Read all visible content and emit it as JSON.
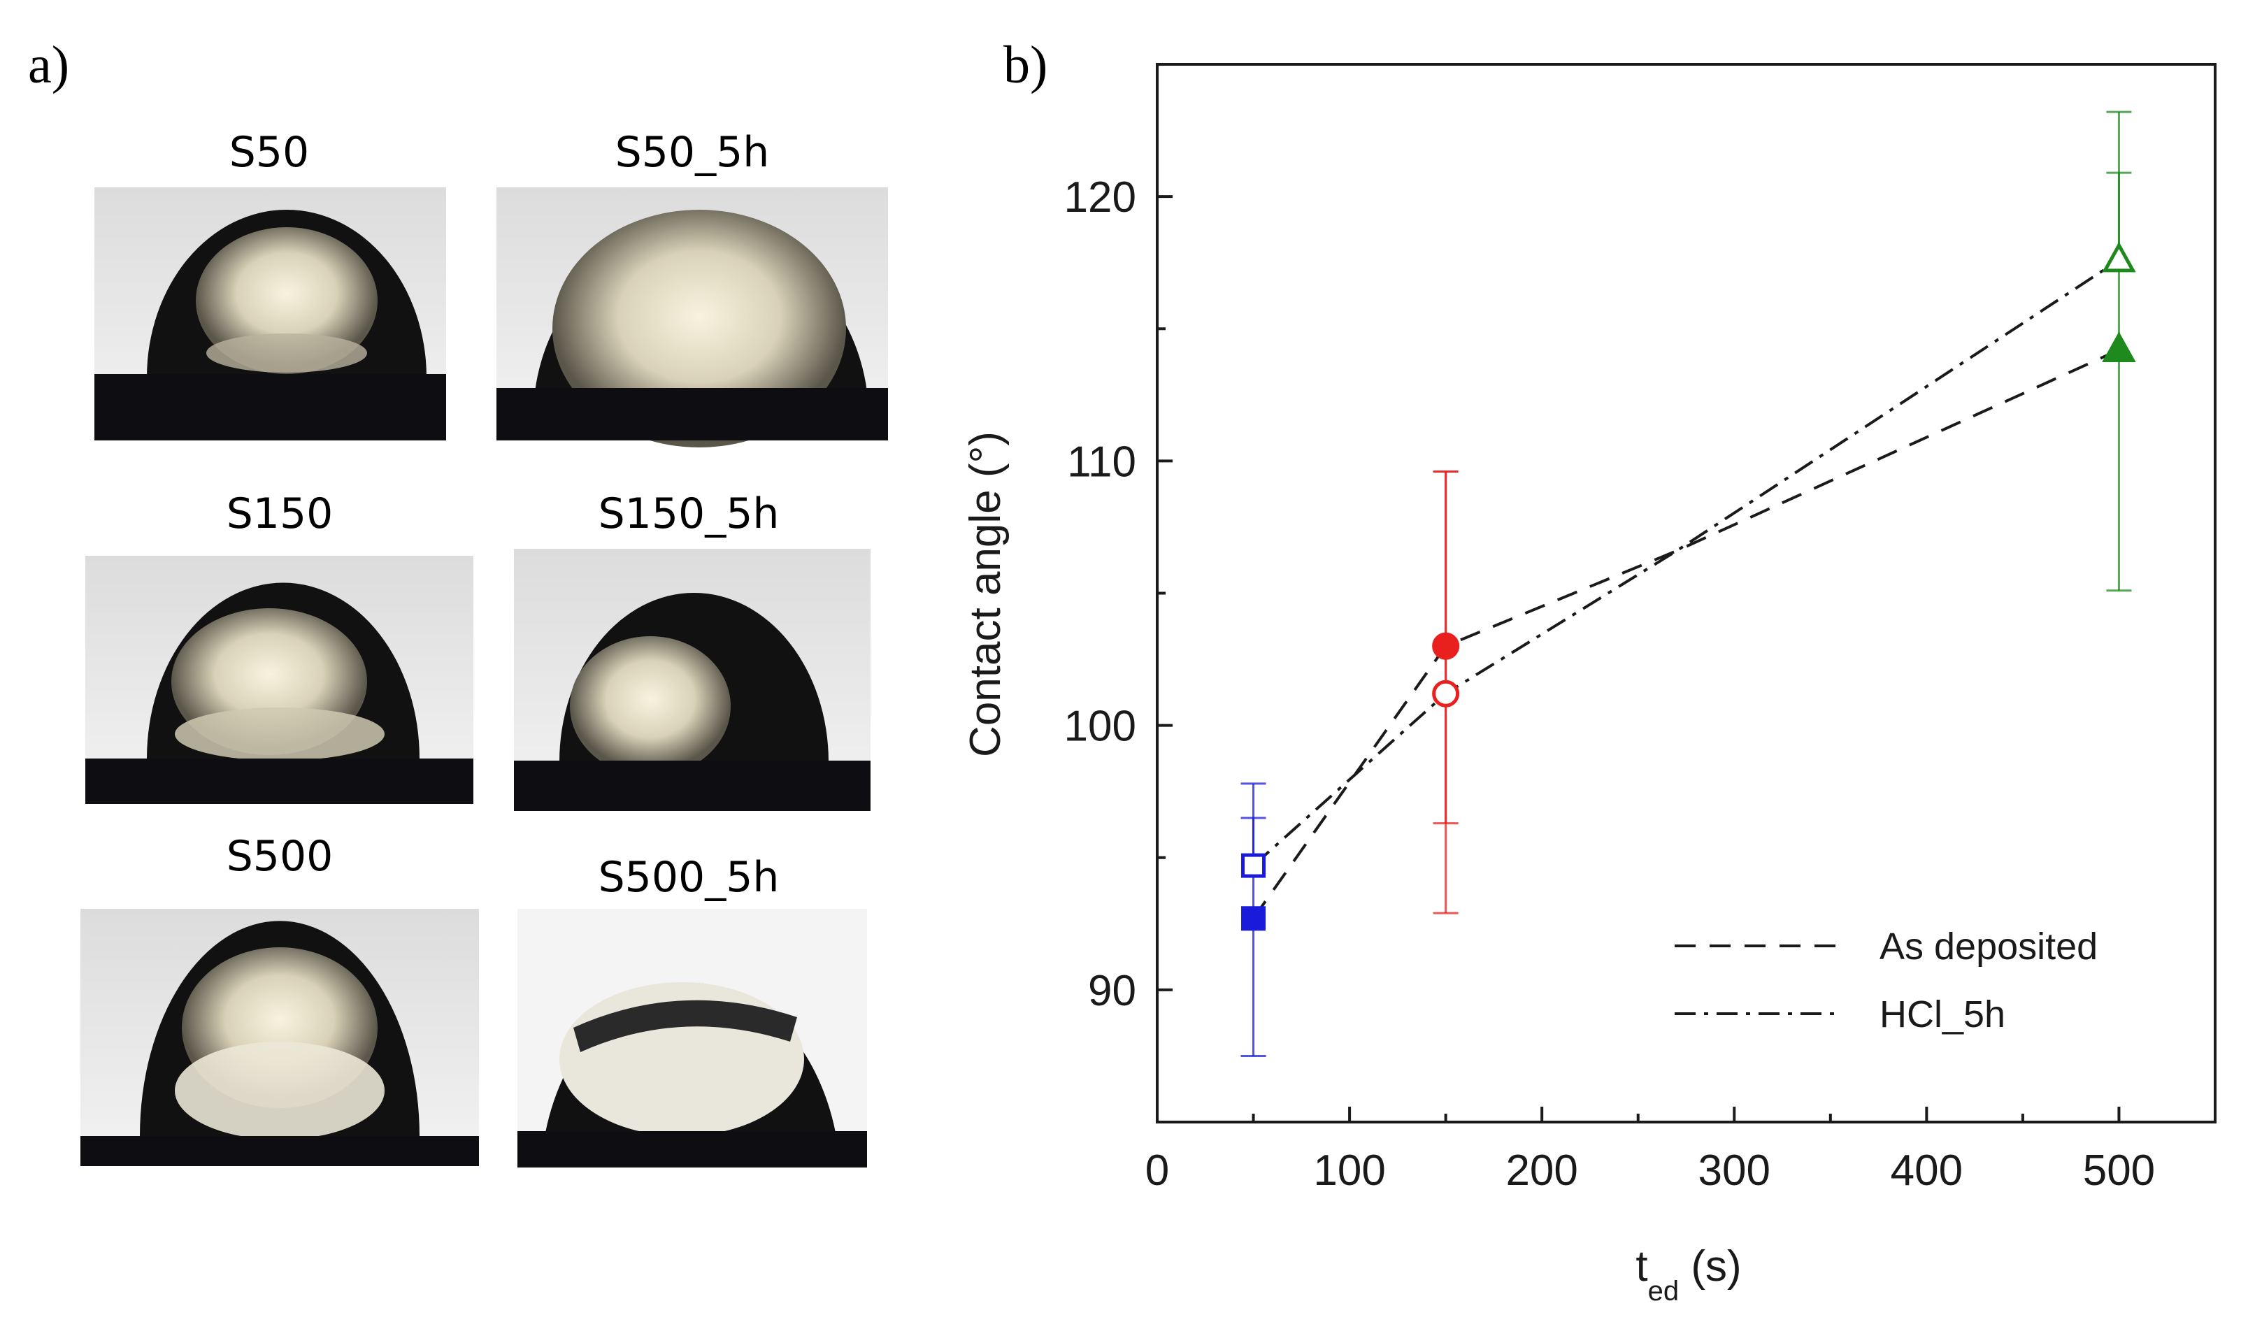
{
  "panel_a": {
    "label": "a)",
    "photos": [
      {
        "name": "s50",
        "title": "S50"
      },
      {
        "name": "s50-5h",
        "title": "S50_5h"
      },
      {
        "name": "s150",
        "title": "S150"
      },
      {
        "name": "s150-5h",
        "title": "S150_5h"
      },
      {
        "name": "s500",
        "title": "S500"
      },
      {
        "name": "s500-5h",
        "title": "S500_5h"
      }
    ]
  },
  "chart_data": {
    "type": "scatter",
    "panel_label": "b)",
    "title": "",
    "xlabel": "t",
    "xlabel_subscript": "ed",
    "xlabel_unit": " (s)",
    "ylabel": "Contact angle (°)",
    "xlim": [
      0,
      550
    ],
    "ylim": [
      85,
      125
    ],
    "xticks": [
      0,
      100,
      200,
      300,
      400,
      500
    ],
    "yticks": [
      90,
      100,
      110,
      120
    ],
    "series": [
      {
        "name": "As deposited",
        "line_style": "dashed",
        "marker_fill": "filled",
        "points": [
          {
            "x": 50,
            "y": 92.7,
            "err_low": 87.5,
            "err_high": 96.5,
            "color": "#1a1adb",
            "marker": "square"
          },
          {
            "x": 150,
            "y": 103.0,
            "err_low": 96.3,
            "err_high": 109.6,
            "color": "#e8201e",
            "marker": "circle"
          },
          {
            "x": 500,
            "y": 114.2,
            "err_low": 105.1,
            "err_high": 120.9,
            "color": "#1e8a1e",
            "marker": "triangle"
          }
        ],
        "line_path": [
          [
            50,
            92.7
          ],
          [
            150,
            103.0
          ],
          [
            270,
            106.6
          ],
          [
            500,
            114.2
          ]
        ]
      },
      {
        "name": "HCl_5h",
        "line_style": "dashdot",
        "marker_fill": "open",
        "points": [
          {
            "x": 50,
            "y": 94.7,
            "err_low": 94.7,
            "err_high": 97.8,
            "color": "#1a1adb",
            "marker": "square"
          },
          {
            "x": 150,
            "y": 101.2,
            "err_low": 92.9,
            "err_high": 109.6,
            "color": "#e8201e",
            "marker": "circle"
          },
          {
            "x": 500,
            "y": 117.6,
            "err_low": 117.6,
            "err_high": 123.2,
            "color": "#1e8a1e",
            "marker": "triangle"
          }
        ],
        "line_path": [
          [
            50,
            94.7
          ],
          [
            150,
            101.2
          ],
          [
            270,
            106.6
          ],
          [
            500,
            117.6
          ]
        ]
      }
    ],
    "legend_position": "bottom-right",
    "grid": false
  }
}
